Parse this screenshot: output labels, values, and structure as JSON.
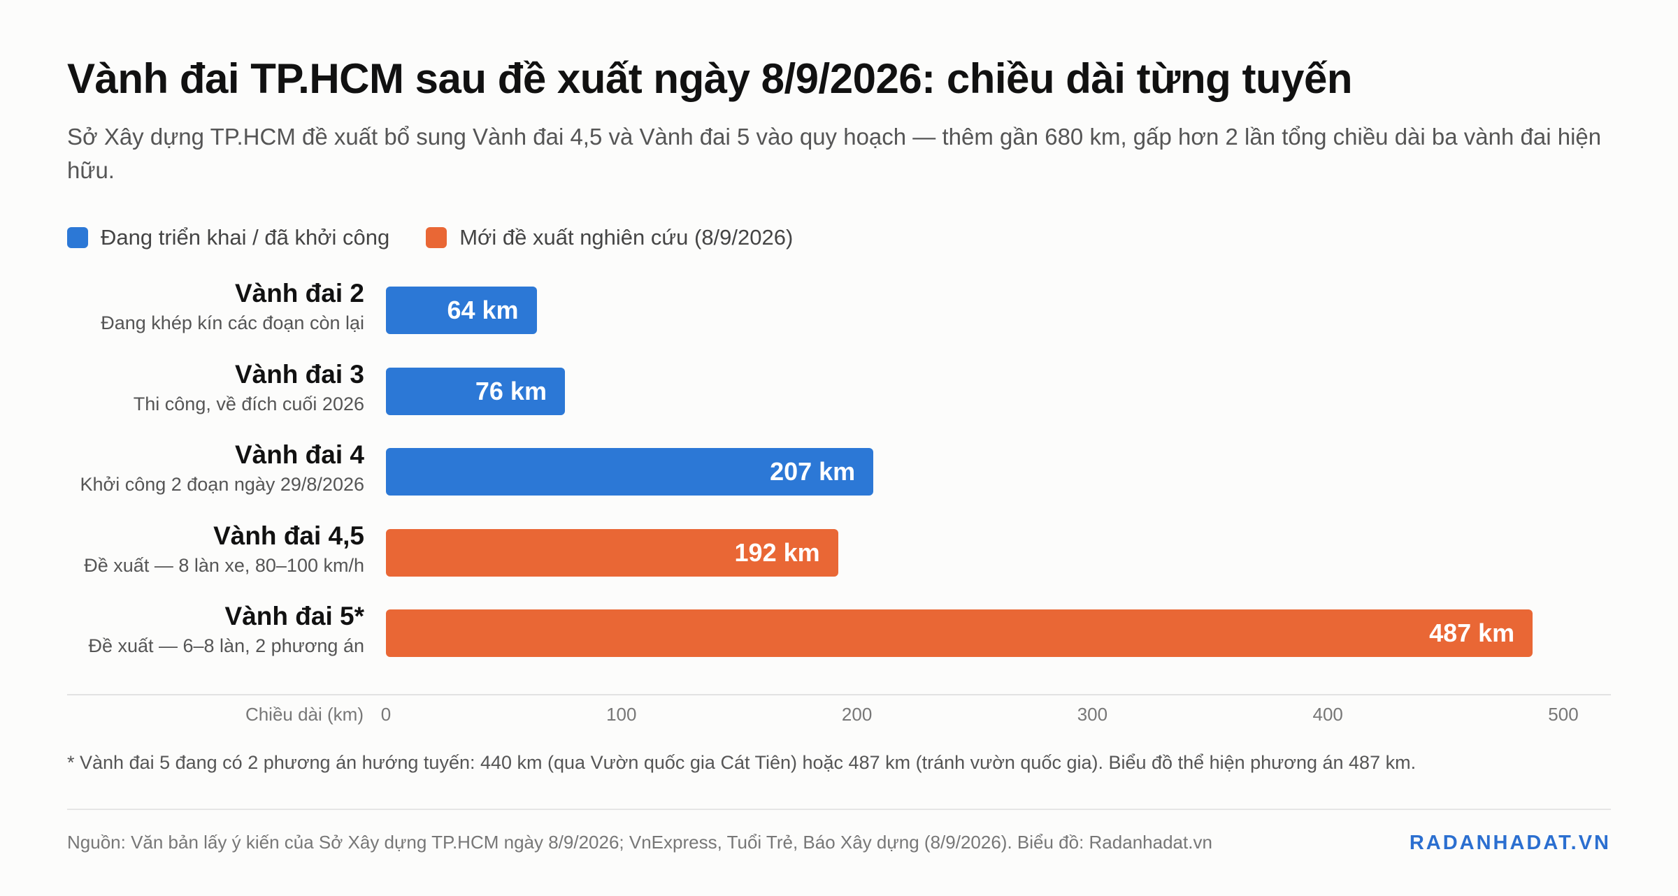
{
  "header": {
    "title": "Vành đai TP.HCM sau đề xuất ngày 8/9/2026: chiều dài từng tuyến",
    "subtitle": "Sở Xây dựng TP.HCM đề xuất bổ sung Vành đai 4,5 và Vành đai 5 vào quy hoạch — thêm gần 680 km, gấp hơn 2 lần tổng chiều dài ba vành đai hiện hữu."
  },
  "legend": [
    {
      "label": "Đang triển khai / đã khởi công",
      "color": "#2c78d6"
    },
    {
      "label": "Mới đề xuất nghiên cứu (8/9/2026)",
      "color": "#e96735"
    }
  ],
  "chart_data": {
    "type": "bar",
    "orientation": "horizontal",
    "categories": [
      "Vành đai 2",
      "Vành đai 3",
      "Vành đai 4",
      "Vành đai 4,5",
      "Vành đai 5*"
    ],
    "notes": [
      "Đang khép kín các đoạn còn lại",
      "Thi công, về đích cuối 2026",
      "Khởi công 2 đoạn ngày 29/8/2026",
      "Đề xuất — 8 làn xe, 80–100 km/h",
      "Đề xuất — 6–8 làn, 2 phương án"
    ],
    "values": [
      64,
      76,
      207,
      192,
      487
    ],
    "value_labels": [
      "64 km",
      "76 km",
      "207 km",
      "192 km",
      "487 km"
    ],
    "groups": [
      0,
      0,
      0,
      1,
      1
    ],
    "xlabel": "Chiều dài (km)",
    "xlim": [
      0,
      500
    ],
    "xticks": [
      "0",
      "100",
      "200",
      "300",
      "400",
      "500"
    ],
    "grid": false,
    "legend_position": "top-left"
  },
  "footnote": "* Vành đai 5 đang có 2 phương án hướng tuyến: 440 km (qua Vườn quốc gia Cát Tiên) hoặc 487 km (tránh vườn quốc gia). Biểu đồ thể hiện phương án 487 km.",
  "footer": {
    "source": "Nguồn: Văn bản lấy ý kiến của Sở Xây dựng TP.HCM ngày 8/9/2026; VnExpress, Tuổi Trẻ, Báo Xây dựng (8/9/2026). Biểu đồ: Radanhadat.vn",
    "brand": "RADANHADAT.VN"
  }
}
